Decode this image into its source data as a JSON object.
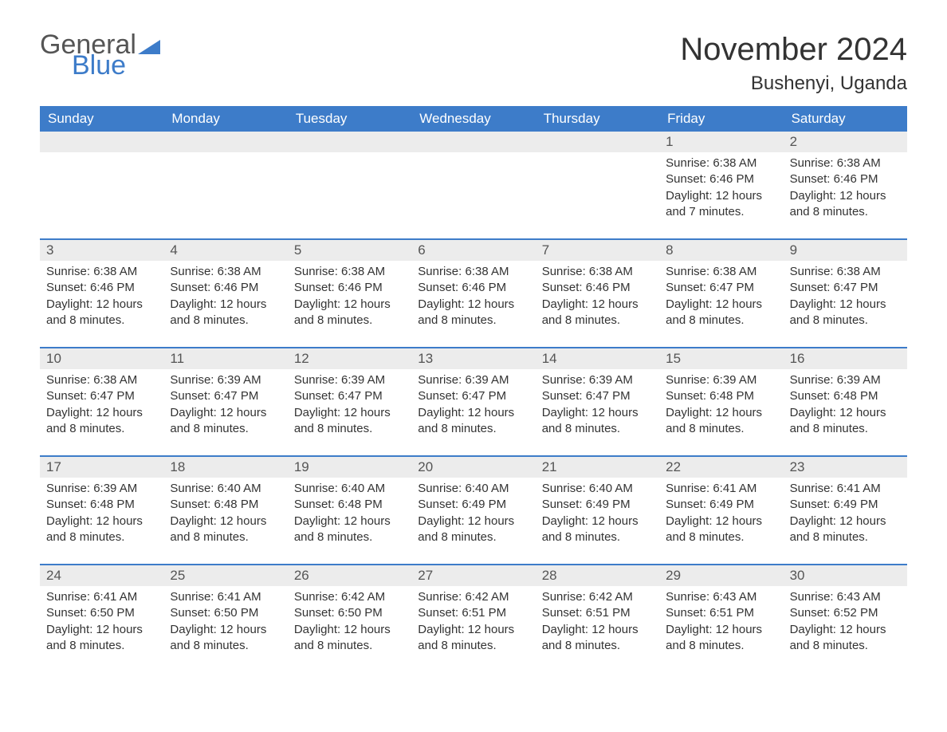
{
  "logo": {
    "text1": "General",
    "text2": "Blue"
  },
  "title": "November 2024",
  "location": "Bushenyi, Uganda",
  "colors": {
    "header_bg": "#3d7cc9",
    "header_text": "#ffffff",
    "band_bg": "#ececec",
    "rule": "#3d7cc9",
    "body_text": "#333333",
    "page_bg": "#ffffff"
  },
  "weekdays": [
    "Sunday",
    "Monday",
    "Tuesday",
    "Wednesday",
    "Thursday",
    "Friday",
    "Saturday"
  ],
  "weeks": [
    [
      null,
      null,
      null,
      null,
      null,
      {
        "n": "1",
        "sr": "Sunrise: 6:38 AM",
        "ss": "Sunset: 6:46 PM",
        "dl": "Daylight: 12 hours and 7 minutes."
      },
      {
        "n": "2",
        "sr": "Sunrise: 6:38 AM",
        "ss": "Sunset: 6:46 PM",
        "dl": "Daylight: 12 hours and 8 minutes."
      }
    ],
    [
      {
        "n": "3",
        "sr": "Sunrise: 6:38 AM",
        "ss": "Sunset: 6:46 PM",
        "dl": "Daylight: 12 hours and 8 minutes."
      },
      {
        "n": "4",
        "sr": "Sunrise: 6:38 AM",
        "ss": "Sunset: 6:46 PM",
        "dl": "Daylight: 12 hours and 8 minutes."
      },
      {
        "n": "5",
        "sr": "Sunrise: 6:38 AM",
        "ss": "Sunset: 6:46 PM",
        "dl": "Daylight: 12 hours and 8 minutes."
      },
      {
        "n": "6",
        "sr": "Sunrise: 6:38 AM",
        "ss": "Sunset: 6:46 PM",
        "dl": "Daylight: 12 hours and 8 minutes."
      },
      {
        "n": "7",
        "sr": "Sunrise: 6:38 AM",
        "ss": "Sunset: 6:46 PM",
        "dl": "Daylight: 12 hours and 8 minutes."
      },
      {
        "n": "8",
        "sr": "Sunrise: 6:38 AM",
        "ss": "Sunset: 6:47 PM",
        "dl": "Daylight: 12 hours and 8 minutes."
      },
      {
        "n": "9",
        "sr": "Sunrise: 6:38 AM",
        "ss": "Sunset: 6:47 PM",
        "dl": "Daylight: 12 hours and 8 minutes."
      }
    ],
    [
      {
        "n": "10",
        "sr": "Sunrise: 6:38 AM",
        "ss": "Sunset: 6:47 PM",
        "dl": "Daylight: 12 hours and 8 minutes."
      },
      {
        "n": "11",
        "sr": "Sunrise: 6:39 AM",
        "ss": "Sunset: 6:47 PM",
        "dl": "Daylight: 12 hours and 8 minutes."
      },
      {
        "n": "12",
        "sr": "Sunrise: 6:39 AM",
        "ss": "Sunset: 6:47 PM",
        "dl": "Daylight: 12 hours and 8 minutes."
      },
      {
        "n": "13",
        "sr": "Sunrise: 6:39 AM",
        "ss": "Sunset: 6:47 PM",
        "dl": "Daylight: 12 hours and 8 minutes."
      },
      {
        "n": "14",
        "sr": "Sunrise: 6:39 AM",
        "ss": "Sunset: 6:47 PM",
        "dl": "Daylight: 12 hours and 8 minutes."
      },
      {
        "n": "15",
        "sr": "Sunrise: 6:39 AM",
        "ss": "Sunset: 6:48 PM",
        "dl": "Daylight: 12 hours and 8 minutes."
      },
      {
        "n": "16",
        "sr": "Sunrise: 6:39 AM",
        "ss": "Sunset: 6:48 PM",
        "dl": "Daylight: 12 hours and 8 minutes."
      }
    ],
    [
      {
        "n": "17",
        "sr": "Sunrise: 6:39 AM",
        "ss": "Sunset: 6:48 PM",
        "dl": "Daylight: 12 hours and 8 minutes."
      },
      {
        "n": "18",
        "sr": "Sunrise: 6:40 AM",
        "ss": "Sunset: 6:48 PM",
        "dl": "Daylight: 12 hours and 8 minutes."
      },
      {
        "n": "19",
        "sr": "Sunrise: 6:40 AM",
        "ss": "Sunset: 6:48 PM",
        "dl": "Daylight: 12 hours and 8 minutes."
      },
      {
        "n": "20",
        "sr": "Sunrise: 6:40 AM",
        "ss": "Sunset: 6:49 PM",
        "dl": "Daylight: 12 hours and 8 minutes."
      },
      {
        "n": "21",
        "sr": "Sunrise: 6:40 AM",
        "ss": "Sunset: 6:49 PM",
        "dl": "Daylight: 12 hours and 8 minutes."
      },
      {
        "n": "22",
        "sr": "Sunrise: 6:41 AM",
        "ss": "Sunset: 6:49 PM",
        "dl": "Daylight: 12 hours and 8 minutes."
      },
      {
        "n": "23",
        "sr": "Sunrise: 6:41 AM",
        "ss": "Sunset: 6:49 PM",
        "dl": "Daylight: 12 hours and 8 minutes."
      }
    ],
    [
      {
        "n": "24",
        "sr": "Sunrise: 6:41 AM",
        "ss": "Sunset: 6:50 PM",
        "dl": "Daylight: 12 hours and 8 minutes."
      },
      {
        "n": "25",
        "sr": "Sunrise: 6:41 AM",
        "ss": "Sunset: 6:50 PM",
        "dl": "Daylight: 12 hours and 8 minutes."
      },
      {
        "n": "26",
        "sr": "Sunrise: 6:42 AM",
        "ss": "Sunset: 6:50 PM",
        "dl": "Daylight: 12 hours and 8 minutes."
      },
      {
        "n": "27",
        "sr": "Sunrise: 6:42 AM",
        "ss": "Sunset: 6:51 PM",
        "dl": "Daylight: 12 hours and 8 minutes."
      },
      {
        "n": "28",
        "sr": "Sunrise: 6:42 AM",
        "ss": "Sunset: 6:51 PM",
        "dl": "Daylight: 12 hours and 8 minutes."
      },
      {
        "n": "29",
        "sr": "Sunrise: 6:43 AM",
        "ss": "Sunset: 6:51 PM",
        "dl": "Daylight: 12 hours and 8 minutes."
      },
      {
        "n": "30",
        "sr": "Sunrise: 6:43 AM",
        "ss": "Sunset: 6:52 PM",
        "dl": "Daylight: 12 hours and 8 minutes."
      }
    ]
  ]
}
